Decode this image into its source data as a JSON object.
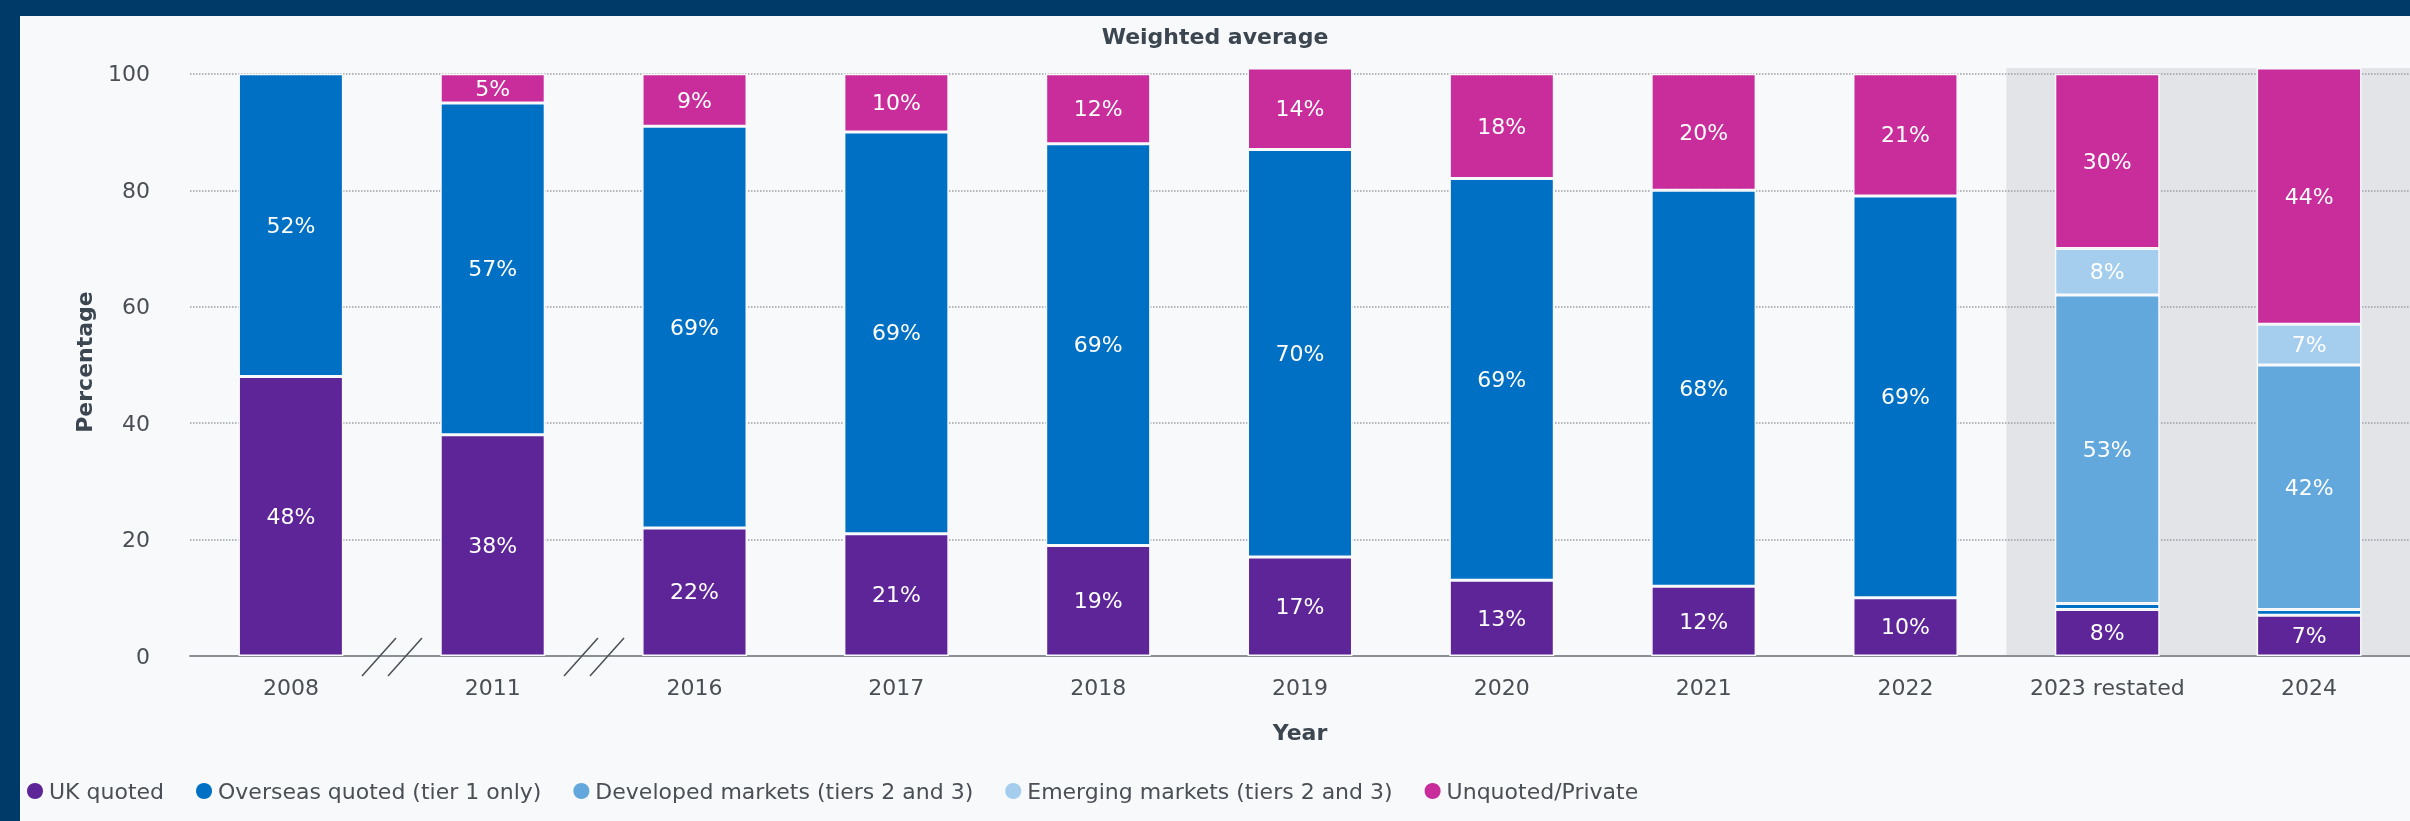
{
  "chart_data": {
    "type": "bar",
    "stacked": true,
    "title": "Weighted average",
    "xlabel": "Year",
    "ylabel": "Percentage",
    "categories": [
      "2008",
      "2011",
      "2016",
      "2017",
      "2018",
      "2019",
      "2020",
      "2021",
      "2022",
      "2023 restated",
      "2024"
    ],
    "series": [
      {
        "name": "UK quoted",
        "color": "#5e2599",
        "values": [
          48,
          38,
          22,
          21,
          19,
          17,
          13,
          12,
          10,
          8,
          7
        ],
        "value_labels": [
          "48%",
          "38%",
          "22%",
          "21%",
          "19%",
          "17%",
          "13%",
          "12%",
          "10%",
          "8%",
          "7%"
        ]
      },
      {
        "name": "Overseas quoted (tier 1 only)",
        "color": "#0070c4",
        "values": [
          52,
          57,
          69,
          69,
          69,
          70,
          69,
          68,
          69,
          1,
          1
        ],
        "value_labels": [
          "52%",
          "57%",
          "69%",
          "69%",
          "69%",
          "70%",
          "69%",
          "68%",
          "69%",
          null,
          null
        ]
      },
      {
        "name": "Developed markets (tiers 2 and 3)",
        "color": "#62a8dc",
        "values": [
          null,
          null,
          null,
          null,
          null,
          null,
          null,
          null,
          null,
          53,
          42
        ],
        "value_labels": [
          null,
          null,
          null,
          null,
          null,
          null,
          null,
          null,
          null,
          "53%",
          "42%"
        ]
      },
      {
        "name": "Emerging markets (tiers 2 and 3)",
        "color": "#a4cdee",
        "values": [
          null,
          null,
          null,
          null,
          null,
          null,
          null,
          null,
          null,
          8,
          7
        ],
        "value_labels": [
          null,
          null,
          null,
          null,
          null,
          null,
          null,
          null,
          null,
          "8%",
          "7%"
        ]
      },
      {
        "name": "Unquoted/Private",
        "color": "#c92d9b",
        "values": [
          null,
          5,
          9,
          10,
          12,
          14,
          18,
          20,
          21,
          30,
          44
        ],
        "value_labels": [
          null,
          "5%",
          "9%",
          "10%",
          "12%",
          "14%",
          "18%",
          "20%",
          "21%",
          "30%",
          "44%"
        ]
      }
    ],
    "ylim": [
      0,
      101
    ],
    "yticks": [
      0,
      20,
      40,
      60,
      80,
      100
    ],
    "grid": "y",
    "legend": "bottom left",
    "bands": [
      {
        "axis": "x",
        "from": "2023 restated",
        "to": "2024",
        "color": "#e2e4e7"
      }
    ]
  }
}
